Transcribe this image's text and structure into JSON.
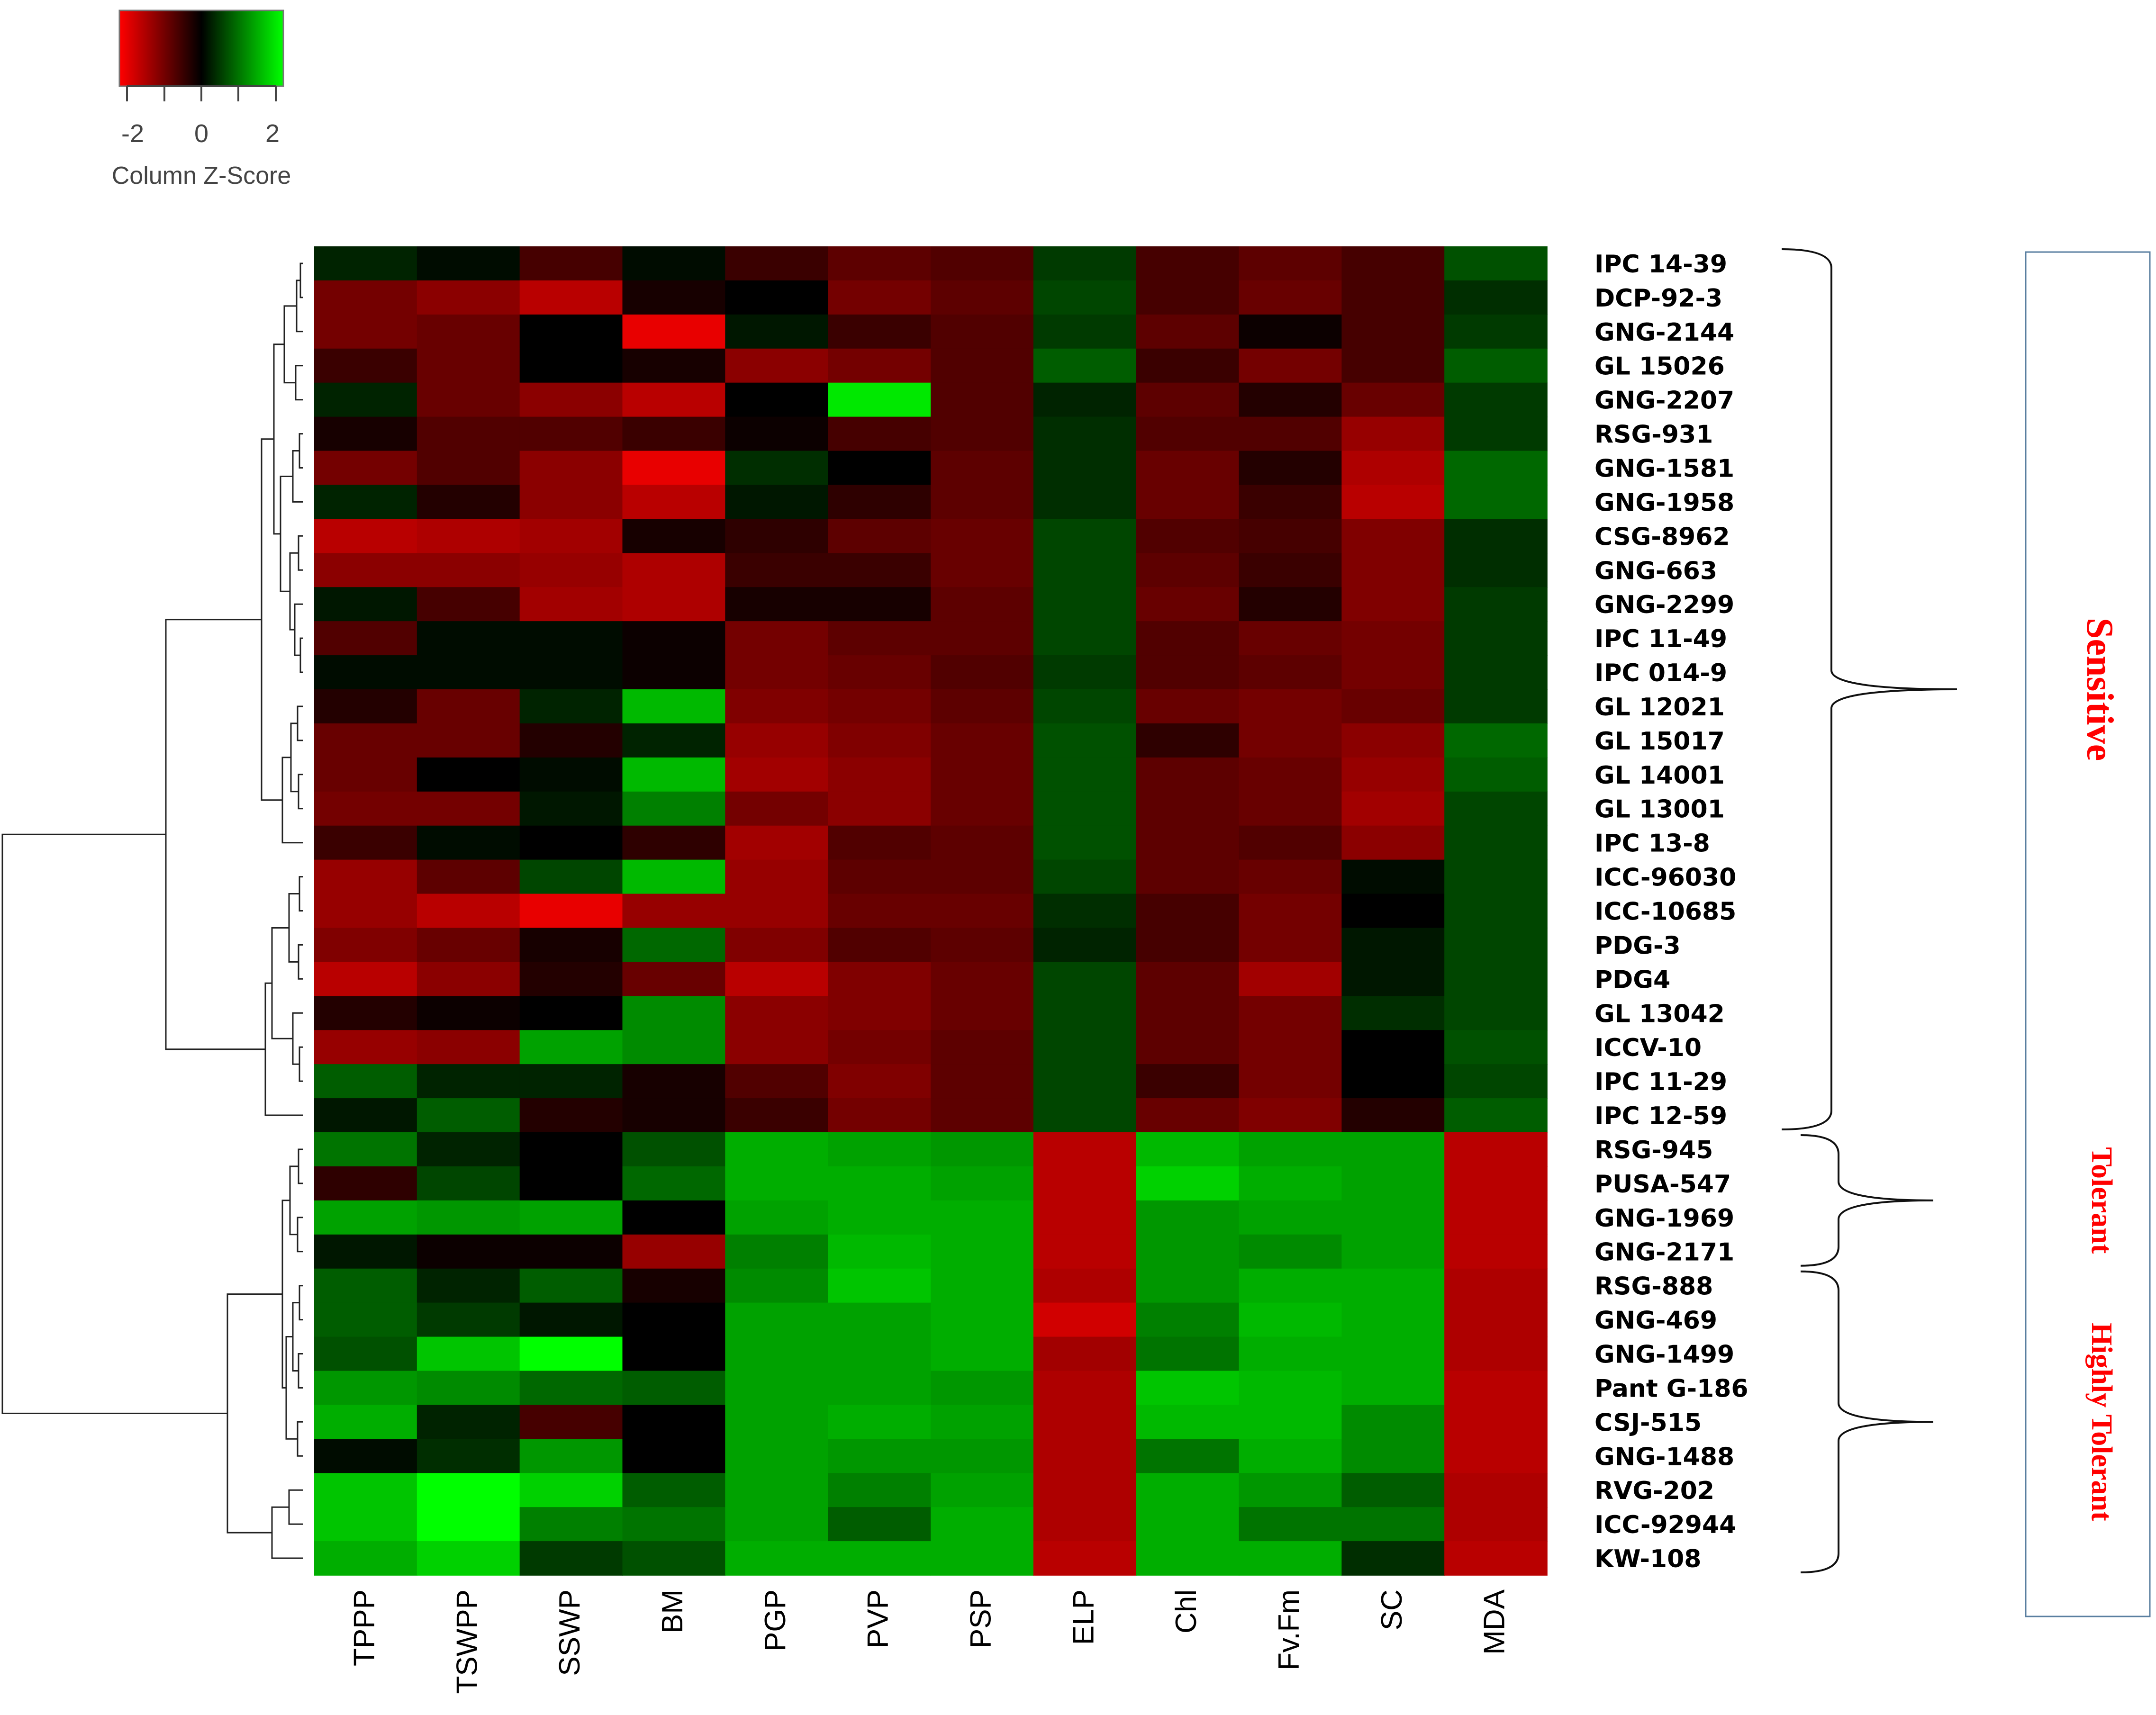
{
  "chart_data": {
    "type": "heatmap",
    "color_key": {
      "title": "Column Z-Score",
      "ticks": [
        "-2",
        "0",
        "2"
      ],
      "low_color": "#ff0000",
      "mid_color": "#000000",
      "high_color": "#00ff00"
    },
    "columns": [
      "TPPP",
      "TSWPP",
      "SSWP",
      "BM",
      "PGP",
      "PVP",
      "PSP",
      "ELP",
      "Chl",
      "Fv.Fm",
      "SC",
      "MDA"
    ],
    "rows": [
      "IPC 14-39",
      "DCP-92-3",
      "GNG-2144",
      "GL 15026",
      "GNG-2207",
      "RSG-931",
      "GNG-1581",
      "GNG-1958",
      "CSG-8962",
      "GNG-663",
      "GNG-2299",
      "IPC 11-49",
      "IPC 014-9",
      "GL 12021",
      "GL 15017",
      "GL 14001",
      "GL 13001",
      "IPC 13-8",
      "ICC-96030",
      "ICC-10685",
      "PDG-3",
      "PDG4",
      "GL 13042",
      "ICCV-10",
      "IPC 11-29",
      "IPC 12-59",
      "RSG-945",
      "PUSA-547",
      "GNG-1969",
      "GNG-2171",
      "RSG-888",
      "GNG-469",
      "GNG-1499",
      "Pant G-186",
      "CSJ-515",
      "GNG-1488",
      "RVG-202",
      "ICC-92944",
      "KW-108"
    ],
    "values": [
      [
        0.3,
        0.1,
        -0.6,
        0.1,
        -0.5,
        -0.8,
        -0.7,
        0.5,
        -0.6,
        -0.8,
        -0.6,
        0.7
      ],
      [
        -1.0,
        -1.2,
        -1.6,
        -0.2,
        0.0,
        -1.0,
        -0.8,
        0.6,
        -0.6,
        -0.9,
        -0.6,
        0.4
      ],
      [
        -1.0,
        -0.9,
        0.0,
        -2.0,
        0.2,
        -0.5,
        -0.7,
        0.5,
        -0.8,
        -0.1,
        -0.6,
        0.5
      ],
      [
        -0.5,
        -0.9,
        0.0,
        -0.2,
        -1.2,
        -1.0,
        -0.7,
        0.8,
        -0.5,
        -1.0,
        -0.6,
        0.8
      ],
      [
        0.3,
        -0.9,
        -1.2,
        -1.6,
        0.0,
        2.0,
        -0.7,
        0.3,
        -0.8,
        -0.3,
        -0.9,
        0.5
      ],
      [
        -0.2,
        -0.7,
        -0.7,
        -0.5,
        -0.1,
        -0.6,
        -0.7,
        0.4,
        -0.7,
        -0.7,
        -1.3,
        0.5
      ],
      [
        -1.0,
        -0.7,
        -1.2,
        -2.0,
        0.4,
        0.0,
        -0.8,
        0.4,
        -0.9,
        -0.3,
        -1.5,
        0.9
      ],
      [
        0.3,
        -0.3,
        -1.2,
        -1.6,
        0.2,
        -0.4,
        -0.8,
        0.4,
        -0.9,
        -0.5,
        -1.6,
        0.9
      ],
      [
        -1.6,
        -1.5,
        -1.4,
        -0.2,
        -0.4,
        -0.8,
        -0.9,
        0.6,
        -0.7,
        -0.6,
        -1.1,
        0.4
      ],
      [
        -1.2,
        -1.2,
        -1.3,
        -1.5,
        -0.5,
        -0.5,
        -0.9,
        0.6,
        -0.8,
        -0.5,
        -1.1,
        0.4
      ],
      [
        0.2,
        -0.6,
        -1.4,
        -1.5,
        -0.2,
        -0.2,
        -0.8,
        0.6,
        -0.9,
        -0.3,
        -1.1,
        0.5
      ],
      [
        -0.7,
        0.1,
        0.1,
        -0.1,
        -1.0,
        -0.8,
        -0.8,
        0.6,
        -0.7,
        -0.9,
        -1.0,
        0.5
      ],
      [
        0.1,
        0.1,
        0.1,
        -0.1,
        -1.0,
        -0.9,
        -0.7,
        0.5,
        -0.7,
        -0.8,
        -1.0,
        0.5
      ],
      [
        -0.3,
        -0.9,
        0.3,
        1.6,
        -1.1,
        -1.0,
        -0.8,
        0.6,
        -0.9,
        -1.0,
        -0.9,
        0.5
      ],
      [
        -0.9,
        -0.9,
        -0.3,
        0.3,
        -1.3,
        -1.1,
        -0.9,
        0.7,
        -0.4,
        -1.0,
        -1.2,
        0.9
      ],
      [
        -0.9,
        0.0,
        0.1,
        1.6,
        -1.4,
        -1.2,
        -0.9,
        0.7,
        -0.8,
        -0.9,
        -1.3,
        0.8
      ],
      [
        -1.0,
        -1.0,
        0.2,
        1.1,
        -1.0,
        -1.2,
        -0.9,
        0.7,
        -0.8,
        -0.9,
        -1.4,
        0.6
      ],
      [
        -0.5,
        0.1,
        0.0,
        -0.4,
        -1.4,
        -0.7,
        -0.8,
        0.7,
        -0.8,
        -0.7,
        -1.2,
        0.6
      ],
      [
        -1.3,
        -0.8,
        0.6,
        1.6,
        -1.3,
        -0.8,
        -0.8,
        0.6,
        -0.8,
        -0.9,
        0.1,
        0.6
      ],
      [
        -1.3,
        -1.6,
        -2.0,
        -1.3,
        -1.3,
        -0.9,
        -0.9,
        0.4,
        -0.6,
        -1.0,
        0.0,
        0.6
      ],
      [
        -1.1,
        -0.9,
        -0.2,
        0.9,
        -1.1,
        -0.7,
        -0.8,
        0.3,
        -0.6,
        -1.0,
        0.2,
        0.6
      ],
      [
        -1.6,
        -1.2,
        -0.3,
        -0.9,
        -1.6,
        -1.1,
        -0.9,
        0.6,
        -0.8,
        -1.4,
        0.2,
        0.6
      ],
      [
        -0.3,
        -0.1,
        0.0,
        1.2,
        -1.2,
        -1.1,
        -0.9,
        0.6,
        -0.8,
        -1.0,
        0.4,
        0.6
      ],
      [
        -1.3,
        -1.2,
        1.4,
        1.2,
        -1.2,
        -1.0,
        -0.8,
        0.6,
        -0.8,
        -1.0,
        0.0,
        0.7
      ],
      [
        0.8,
        0.3,
        0.3,
        -0.2,
        -0.7,
        -1.1,
        -0.8,
        0.6,
        -0.5,
        -1.0,
        0.0,
        0.6
      ],
      [
        0.2,
        0.8,
        -0.3,
        -0.2,
        -0.5,
        -1.0,
        -0.8,
        0.6,
        -0.9,
        -1.1,
        -0.3,
        0.8
      ],
      [
        1.0,
        0.3,
        0.0,
        0.7,
        1.5,
        1.4,
        1.3,
        -1.6,
        1.6,
        1.4,
        1.4,
        -1.6
      ],
      [
        -0.4,
        0.6,
        0.0,
        0.9,
        1.5,
        1.5,
        1.4,
        -1.6,
        1.8,
        1.5,
        1.4,
        -1.6
      ],
      [
        1.4,
        1.3,
        1.4,
        0.0,
        1.4,
        1.5,
        1.5,
        -1.6,
        1.3,
        1.4,
        1.4,
        -1.6
      ],
      [
        0.2,
        -0.1,
        -0.1,
        -1.3,
        1.1,
        1.6,
        1.5,
        -1.6,
        1.3,
        1.2,
        1.4,
        -1.6
      ],
      [
        0.8,
        0.3,
        0.8,
        -0.2,
        1.2,
        1.7,
        1.5,
        -1.5,
        1.3,
        1.5,
        1.5,
        -1.5
      ],
      [
        0.8,
        0.5,
        0.2,
        0.0,
        1.4,
        1.4,
        1.5,
        -1.8,
        1.1,
        1.6,
        1.5,
        -1.5
      ],
      [
        0.7,
        1.7,
        2.2,
        0.0,
        1.4,
        1.4,
        1.5,
        -1.4,
        1.0,
        1.5,
        1.5,
        -1.5
      ],
      [
        1.3,
        1.2,
        0.9,
        0.8,
        1.4,
        1.4,
        1.3,
        -1.5,
        1.7,
        1.6,
        1.5,
        -1.6
      ],
      [
        1.5,
        0.3,
        -0.6,
        0.0,
        1.4,
        1.5,
        1.4,
        -1.5,
        1.6,
        1.6,
        1.2,
        -1.6
      ],
      [
        0.1,
        0.4,
        1.3,
        0.0,
        1.4,
        1.3,
        1.3,
        -1.5,
        1.0,
        1.5,
        1.2,
        -1.6
      ],
      [
        1.7,
        2.2,
        1.8,
        0.8,
        1.4,
        1.1,
        1.4,
        -1.5,
        1.5,
        1.3,
        0.8,
        -1.5
      ],
      [
        1.7,
        2.2,
        1.1,
        1.0,
        1.4,
        0.8,
        1.5,
        -1.5,
        1.5,
        1.0,
        1.0,
        -1.5
      ],
      [
        1.5,
        1.8,
        0.5,
        0.7,
        1.5,
        1.5,
        1.5,
        -1.6,
        1.5,
        1.5,
        0.4,
        -1.6
      ]
    ],
    "groups": [
      {
        "label": "Sensitive",
        "from": "IPC 14-39",
        "to": "IPC 12-59",
        "color": "#ff0000"
      },
      {
        "label": "Tolerant",
        "from": "RSG-945",
        "to": "GNG-2171",
        "color": "#ff0000"
      },
      {
        "label": "Highly Tolerant",
        "from": "RSG-888",
        "to": "KW-108",
        "color": "#ff0000"
      }
    ]
  }
}
